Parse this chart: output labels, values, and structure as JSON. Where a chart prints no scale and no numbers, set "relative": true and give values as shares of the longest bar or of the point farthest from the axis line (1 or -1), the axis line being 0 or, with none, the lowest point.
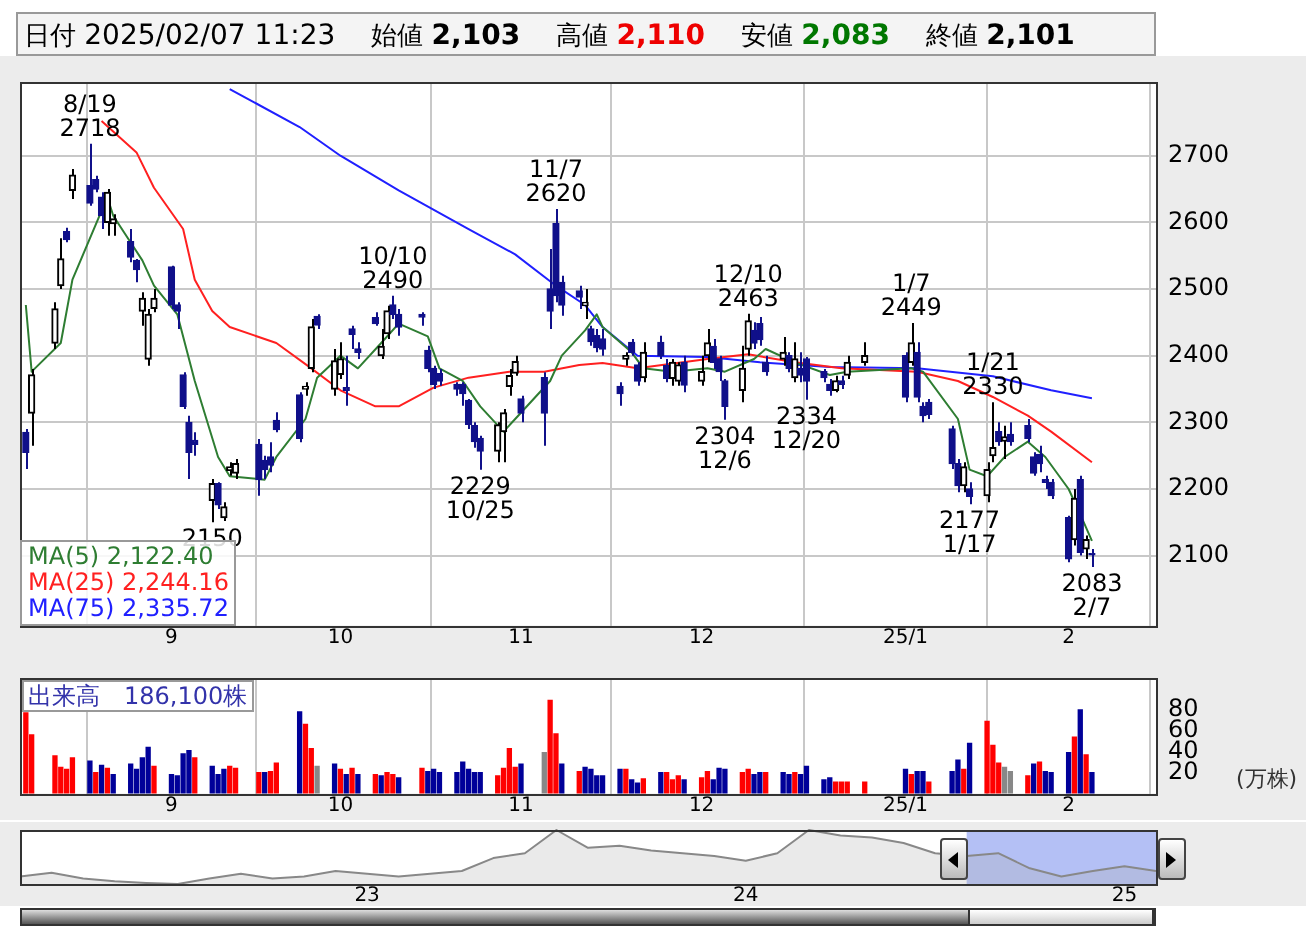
{
  "chart_data": [
    {
      "type": "candlestick",
      "grid": true,
      "legend": "bottom left",
      "colors": [
        "#10108a",
        "#000000",
        "#000000",
        "#000000",
        "#10108a",
        "#000000",
        "#10108a",
        "#10108a",
        "#10108a",
        "#000000",
        "#000000",
        "#10108a",
        "#10108a",
        "#000000",
        "#000000",
        "#000000",
        "#10108a",
        "#10108a",
        "#10108a",
        "#10108a",
        "#10108a",
        "#000000",
        "#10108a",
        "#000000",
        "#000000",
        "#000000",
        "#10108a",
        "#10108a",
        "#10108a",
        "#10108a",
        "#10108a",
        "#000000",
        "#000000",
        "#10108a",
        "#000000",
        "#000000",
        "#10108a",
        "#10108a",
        "#10108a",
        "#10108a",
        "#000000",
        "#000000",
        "#10108a",
        "#10108a",
        "#10108a",
        "#10108a",
        "#10108a",
        "#10108a",
        "#10108a",
        "#10108a",
        "#10108a",
        "#10108a",
        "#10108a",
        "#000000",
        "#000000",
        "#000000",
        "#000000",
        "#10108a",
        "#10108a",
        "#10108a",
        "#10108a",
        "#10108a",
        "#10108a",
        "#000000",
        "#10108a",
        "#10108a",
        "#10108a",
        "#10108a",
        "#000000",
        "#10108a",
        "#10108a",
        "#000000",
        "#10108a",
        "#10108a",
        "#000000",
        "#000000",
        "#10108a",
        "#000000",
        "#000000",
        "#10108a",
        "#10108a",
        "#10108a",
        "#000000",
        "#000000",
        "#10108a",
        "#10108a",
        "#10108a",
        "#000000",
        "#10108a",
        "#000000",
        "#10108a",
        "#10108a",
        "#10108a",
        "#10108a",
        "#000000",
        "#10108a",
        "#000000",
        "#000000",
        "#10108a",
        "#000000",
        "#10108a",
        "#10108a",
        "#10108a",
        "#10108a",
        "#10108a",
        "#000000",
        "#10108a",
        "#000000",
        "#000000",
        "#10108a",
        "#000000",
        "#10108a",
        "#10108a",
        "#10108a",
        "#10108a",
        "#10108a",
        "#10108a",
        "#10108a",
        "#000000",
        "#10108a",
        "#000000",
        "#10108a"
      ],
      "x": [
        "2024-08-08",
        "2024-08-09",
        "2024-08-13",
        "2024-08-14",
        "2024-08-15",
        "2024-08-16",
        "2024-08-19",
        "2024-08-20",
        "2024-08-21",
        "2024-08-22",
        "2024-08-23",
        "2024-08-26",
        "2024-08-27",
        "2024-08-28",
        "2024-08-29",
        "2024-08-30",
        "2024-09-02",
        "2024-09-03",
        "2024-09-04",
        "2024-09-05",
        "2024-09-06",
        "2024-09-09",
        "2024-09-10",
        "2024-09-11",
        "2024-09-12",
        "2024-09-13",
        "2024-09-17",
        "2024-09-18",
        "2024-09-19",
        "2024-09-20",
        "2024-09-24",
        "2024-09-25",
        "2024-09-26",
        "2024-09-27",
        "2024-09-30",
        "2024-10-01",
        "2024-10-02",
        "2024-10-03",
        "2024-10-04",
        "2024-10-07",
        "2024-10-08",
        "2024-10-09",
        "2024-10-10",
        "2024-10-11",
        "2024-10-15",
        "2024-10-16",
        "2024-10-17",
        "2024-10-18",
        "2024-10-21",
        "2024-10-22",
        "2024-10-23",
        "2024-10-24",
        "2024-10-25",
        "2024-10-28",
        "2024-10-29",
        "2024-10-30",
        "2024-10-31",
        "2024-11-01",
        "2024-11-05",
        "2024-11-06",
        "2024-11-07",
        "2024-11-08",
        "2024-11-11",
        "2024-11-12",
        "2024-11-13",
        "2024-11-14",
        "2024-11-15",
        "2024-11-18",
        "2024-11-19",
        "2024-11-20",
        "2024-11-21",
        "2024-11-22",
        "2024-11-25",
        "2024-11-26",
        "2024-11-27",
        "2024-11-28",
        "2024-11-29",
        "2024-12-02",
        "2024-12-03",
        "2024-12-04",
        "2024-12-05",
        "2024-12-06",
        "2024-12-09",
        "2024-12-10",
        "2024-12-11",
        "2024-12-12",
        "2024-12-13",
        "2024-12-16",
        "2024-12-17",
        "2024-12-18",
        "2024-12-19",
        "2024-12-20",
        "2024-12-23",
        "2024-12-24",
        "2024-12-25",
        "2024-12-26",
        "2024-12-27",
        "2024-12-30",
        "2025-01-06",
        "2025-01-07",
        "2025-01-08",
        "2025-01-09",
        "2025-01-10",
        "2025-01-14",
        "2025-01-15",
        "2025-01-16",
        "2025-01-17",
        "2025-01-20",
        "2025-01-21",
        "2025-01-22",
        "2025-01-23",
        "2025-01-24",
        "2025-01-27",
        "2025-01-28",
        "2025-01-29",
        "2025-01-30",
        "2025-01-31",
        "2025-02-03",
        "2025-02-04",
        "2025-02-05",
        "2025-02-06",
        "2025-02-07"
      ],
      "ohlc": [
        [
          2285,
          2290,
          2230,
          2255
        ],
        [
          2314,
          2380,
          2265,
          2371
        ],
        [
          2419,
          2480,
          2410,
          2470
        ],
        [
          2505,
          2576,
          2500,
          2545
        ],
        [
          2586,
          2592,
          2570,
          2574
        ],
        [
          2648,
          2680,
          2635,
          2671
        ],
        [
          2655,
          2718,
          2625,
          2629
        ],
        [
          2664,
          2670,
          2645,
          2650
        ],
        [
          2638,
          2645,
          2590,
          2610
        ],
        [
          2600,
          2650,
          2580,
          2645
        ],
        [
          2598,
          2612,
          2580,
          2605
        ],
        [
          2571,
          2590,
          2540,
          2548
        ],
        [
          2543,
          2545,
          2510,
          2529
        ],
        [
          2467,
          2495,
          2445,
          2486
        ],
        [
          2395,
          2470,
          2385,
          2462
        ],
        [
          2471,
          2500,
          2465,
          2486
        ],
        [
          2533,
          2535,
          2470,
          2476
        ],
        [
          2476,
          2480,
          2440,
          2467
        ],
        [
          2371,
          2375,
          2320,
          2324
        ],
        [
          2300,
          2310,
          2215,
          2255
        ],
        [
          2273,
          2285,
          2250,
          2267
        ],
        [
          2183,
          2215,
          2150,
          2208
        ],
        [
          2208,
          2210,
          2170,
          2176
        ],
        [
          2157,
          2180,
          2152,
          2173
        ],
        [
          2228,
          2240,
          2220,
          2233
        ],
        [
          2224,
          2245,
          2215,
          2238
        ],
        [
          2267,
          2275,
          2190,
          2214
        ],
        [
          2243,
          2250,
          2215,
          2229
        ],
        [
          2248,
          2270,
          2225,
          2236
        ],
        [
          2303,
          2315,
          2285,
          2289
        ],
        [
          2341,
          2345,
          2270,
          2276
        ],
        [
          2350,
          2360,
          2340,
          2354
        ],
        [
          2381,
          2455,
          2375,
          2443
        ],
        [
          2459,
          2462,
          2440,
          2446
        ],
        [
          2350,
          2410,
          2340,
          2392
        ],
        [
          2372,
          2420,
          2365,
          2395
        ],
        [
          2352,
          2400,
          2325,
          2348
        ],
        [
          2440,
          2445,
          2410,
          2432
        ],
        [
          2410,
          2420,
          2395,
          2405
        ],
        [
          2457,
          2465,
          2445,
          2448
        ],
        [
          2400,
          2440,
          2395,
          2414
        ],
        [
          2433,
          2475,
          2425,
          2467
        ],
        [
          2476,
          2490,
          2455,
          2462
        ],
        [
          2462,
          2470,
          2430,
          2443
        ],
        [
          2462,
          2465,
          2445,
          2458
        ],
        [
          2408,
          2415,
          2375,
          2381
        ],
        [
          2381,
          2385,
          2350,
          2357
        ],
        [
          2373,
          2380,
          2355,
          2362
        ],
        [
          2357,
          2360,
          2340,
          2350
        ],
        [
          2357,
          2360,
          2325,
          2343
        ],
        [
          2333,
          2335,
          2290,
          2297
        ],
        [
          2295,
          2300,
          2262,
          2271
        ],
        [
          2276,
          2280,
          2229,
          2257
        ],
        [
          2257,
          2300,
          2240,
          2296
        ],
        [
          2286,
          2320,
          2240,
          2314
        ],
        [
          2354,
          2380,
          2340,
          2370
        ],
        [
          2374,
          2400,
          2370,
          2391
        ],
        [
          2335,
          2340,
          2300,
          2314
        ],
        [
          2367,
          2375,
          2265,
          2314
        ],
        [
          2500,
          2560,
          2440,
          2467
        ],
        [
          2598,
          2620,
          2480,
          2490
        ],
        [
          2510,
          2520,
          2460,
          2476
        ],
        [
          2497,
          2505,
          2470,
          2488
        ],
        [
          2475,
          2500,
          2455,
          2480
        ],
        [
          2440,
          2445,
          2415,
          2421
        ],
        [
          2430,
          2440,
          2405,
          2412
        ],
        [
          2425,
          2440,
          2400,
          2410
        ],
        [
          2354,
          2360,
          2325,
          2343
        ],
        [
          2395,
          2405,
          2385,
          2400
        ],
        [
          2420,
          2425,
          2400,
          2405
        ],
        [
          2386,
          2390,
          2355,
          2362
        ],
        [
          2367,
          2420,
          2360,
          2405
        ],
        [
          2420,
          2430,
          2395,
          2400
        ],
        [
          2385,
          2395,
          2360,
          2366
        ],
        [
          2366,
          2395,
          2355,
          2390
        ],
        [
          2362,
          2390,
          2355,
          2386
        ],
        [
          2390,
          2400,
          2345,
          2356
        ],
        [
          2362,
          2400,
          2355,
          2376
        ],
        [
          2400,
          2440,
          2390,
          2419
        ],
        [
          2414,
          2425,
          2380,
          2390
        ],
        [
          2395,
          2400,
          2362,
          2376
        ],
        [
          2362,
          2365,
          2304,
          2324
        ],
        [
          2348,
          2415,
          2330,
          2381
        ],
        [
          2410,
          2463,
          2400,
          2452
        ],
        [
          2438,
          2450,
          2410,
          2419
        ],
        [
          2448,
          2458,
          2415,
          2424
        ],
        [
          2390,
          2400,
          2370,
          2376
        ],
        [
          2395,
          2428,
          2385,
          2405
        ],
        [
          2400,
          2405,
          2375,
          2381
        ],
        [
          2367,
          2420,
          2360,
          2395
        ],
        [
          2381,
          2405,
          2360,
          2371
        ],
        [
          2395,
          2398,
          2334,
          2362
        ],
        [
          2376,
          2380,
          2360,
          2367
        ],
        [
          2357,
          2365,
          2340,
          2348
        ],
        [
          2348,
          2370,
          2345,
          2362
        ],
        [
          2362,
          2370,
          2350,
          2357
        ],
        [
          2371,
          2400,
          2365,
          2390
        ],
        [
          2390,
          2420,
          2385,
          2400
        ],
        [
          2400,
          2405,
          2330,
          2338
        ],
        [
          2390,
          2449,
          2385,
          2419
        ],
        [
          2405,
          2420,
          2330,
          2338
        ],
        [
          2324,
          2330,
          2300,
          2310
        ],
        [
          2330,
          2335,
          2305,
          2312
        ],
        [
          2290,
          2295,
          2230,
          2238
        ],
        [
          2238,
          2245,
          2195,
          2205
        ],
        [
          2205,
          2240,
          2195,
          2233
        ],
        [
          2200,
          2210,
          2177,
          2189
        ],
        [
          2190,
          2240,
          2180,
          2229
        ],
        [
          2250,
          2330,
          2240,
          2262
        ],
        [
          2286,
          2300,
          2265,
          2271
        ],
        [
          2272,
          2295,
          2245,
          2278
        ],
        [
          2282,
          2300,
          2265,
          2271
        ],
        [
          2295,
          2305,
          2270,
          2276
        ],
        [
          2248,
          2255,
          2220,
          2224
        ],
        [
          2252,
          2265,
          2225,
          2238
        ],
        [
          2214,
          2220,
          2200,
          2210
        ],
        [
          2210,
          2215,
          2185,
          2190
        ],
        [
          2157,
          2160,
          2090,
          2095
        ],
        [
          2124,
          2200,
          2115,
          2186
        ],
        [
          2214,
          2220,
          2100,
          2105
        ],
        [
          2110,
          2130,
          2095,
          2124
        ],
        [
          2103,
          2110,
          2083,
          2101
        ]
      ],
      "xlim": [
        "2024-08-07",
        "2025-02-18"
      ],
      "xticks": [
        {
          "value": "2024-09-02",
          "label": "9"
        },
        {
          "value": "2024-10-01",
          "label": "10"
        },
        {
          "value": "2024-11-01",
          "label": "11"
        },
        {
          "value": "2024-12-02",
          "label": "12"
        },
        {
          "value": "2025-01-06",
          "label": "25/1"
        },
        {
          "value": "2025-02-03",
          "label": "2"
        }
      ],
      "ylim": [
        1995,
        2810
      ],
      "yticks": [
        2100,
        2200,
        2300,
        2400,
        2500,
        2600,
        2700
      ],
      "series": [
        {
          "type": "line",
          "name": "MA(5) 2,122.40",
          "color": "#2e7d32",
          "x": [
            "2024-08-08",
            "2024-08-09",
            "2024-08-14",
            "2024-08-16",
            "2024-08-22",
            "2024-08-23",
            "2024-08-28",
            "2024-08-30",
            "2024-09-03",
            "2024-09-06",
            "2024-09-10",
            "2024-09-12",
            "2024-09-18",
            "2024-09-20",
            "2024-09-25",
            "2024-09-27",
            "2024-10-01",
            "2024-10-04",
            "2024-10-08",
            "2024-10-11",
            "2024-10-16",
            "2024-10-18",
            "2024-10-22",
            "2024-10-25",
            "2024-10-29",
            "2024-10-31",
            "2024-11-06",
            "2024-11-08",
            "2024-11-12",
            "2024-11-14",
            "2024-11-15",
            "2024-11-20",
            "2024-11-22",
            "2024-11-27",
            "2024-12-03",
            "2024-12-06",
            "2024-12-11",
            "2024-12-13",
            "2024-12-18",
            "2024-12-24",
            "2024-12-27",
            "2025-01-07",
            "2025-01-09",
            "2025-01-15",
            "2025-01-17",
            "2025-01-20",
            "2025-01-23",
            "2025-01-27",
            "2025-01-30",
            "2025-02-03",
            "2025-02-05",
            "2025-02-07"
          ],
          "values": [
            2476,
            2376,
            2419,
            2514,
            2638,
            2610,
            2543,
            2505,
            2462,
            2362,
            2248,
            2219,
            2214,
            2248,
            2305,
            2367,
            2400,
            2381,
            2419,
            2448,
            2429,
            2381,
            2362,
            2324,
            2286,
            2305,
            2362,
            2400,
            2438,
            2462,
            2443,
            2405,
            2381,
            2376,
            2381,
            2376,
            2395,
            2410,
            2390,
            2371,
            2376,
            2381,
            2376,
            2305,
            2229,
            2219,
            2248,
            2271,
            2248,
            2200,
            2162,
            2122
          ]
        },
        {
          "type": "line",
          "name": "MA(25) 2,244.16",
          "color": "#ff2020",
          "x": [
            "2024-08-21",
            "2024-08-27",
            "2024-08-30",
            "2024-09-04",
            "2024-09-06",
            "2024-09-09",
            "2024-09-12",
            "2024-09-20",
            "2024-09-26",
            "2024-10-01",
            "2024-10-07",
            "2024-10-11",
            "2024-10-17",
            "2024-10-23",
            "2024-10-30",
            "2024-11-05",
            "2024-11-11",
            "2024-11-15",
            "2024-11-21",
            "2024-12-03",
            "2024-12-10",
            "2024-12-18",
            "2024-12-26",
            "2025-01-08",
            "2025-01-15",
            "2025-01-21",
            "2025-01-27",
            "2025-01-31",
            "2025-02-07"
          ],
          "values": [
            2752,
            2705,
            2652,
            2590,
            2514,
            2467,
            2443,
            2419,
            2381,
            2348,
            2324,
            2324,
            2352,
            2367,
            2376,
            2376,
            2386,
            2389,
            2381,
            2395,
            2402,
            2390,
            2381,
            2376,
            2362,
            2338,
            2310,
            2286,
            2240
          ]
        },
        {
          "type": "line",
          "name": "MA(75) 2,335.72",
          "color": "#2020ff",
          "x": [
            "2024-09-12",
            "2024-09-24",
            "2024-10-01",
            "2024-10-11",
            "2024-10-23",
            "2024-10-31",
            "2024-11-07",
            "2024-11-12",
            "2024-11-15",
            "2024-11-21",
            "2024-12-03",
            "2024-12-12",
            "2024-12-24",
            "2025-01-08",
            "2025-01-21",
            "2025-01-31",
            "2025-02-07"
          ],
          "values": [
            2800,
            2743,
            2700,
            2648,
            2590,
            2552,
            2505,
            2476,
            2443,
            2400,
            2398,
            2390,
            2383,
            2381,
            2369,
            2348,
            2336
          ]
        }
      ],
      "annotations": [
        "日付 2025/02/07 11:23",
        "始値 2,103",
        "高値 2,110",
        "安値 2,083",
        "終値 2,101",
        {
          "text": "8/19\n2718",
          "x": "2024-08-19",
          "y": 2718
        },
        {
          "text": "2150",
          "x": "2024-09-09",
          "y": 2150
        },
        {
          "text": "10/10\n2490",
          "x": "2024-10-10",
          "y": 2490
        },
        {
          "text": "2229\n10/25",
          "x": "2024-10-25",
          "y": 2229
        },
        {
          "text": "11/7\n2620",
          "x": "2024-11-07",
          "y": 2620
        },
        {
          "text": "2304\n12/6",
          "x": "2024-12-06",
          "y": 2304
        },
        {
          "text": "12/10\n2463",
          "x": "2024-12-10",
          "y": 2463
        },
        {
          "text": "2334\n12/20",
          "x": "2024-12-20",
          "y": 2334
        },
        {
          "text": "1/7\n2449",
          "x": "2025-01-07",
          "y": 2449
        },
        {
          "text": "2177\n1/17",
          "x": "2025-01-17",
          "y": 2177
        },
        {
          "text": "1/21\n2330",
          "x": "2025-01-21",
          "y": 2330
        },
        {
          "text": "2083\n2/7",
          "x": "2025-02-07",
          "y": 2083
        }
      ]
    },
    {
      "type": "bar",
      "title": "出来高　186,100株",
      "ylabel": "(万株)",
      "grid": "x",
      "x": [
        "2024-08-08",
        "2024-08-09",
        "2024-08-13",
        "2024-08-14",
        "2024-08-15",
        "2024-08-16",
        "2024-08-19",
        "2024-08-20",
        "2024-08-21",
        "2024-08-22",
        "2024-08-23",
        "2024-08-26",
        "2024-08-27",
        "2024-08-28",
        "2024-08-29",
        "2024-08-30",
        "2024-09-02",
        "2024-09-03",
        "2024-09-04",
        "2024-09-05",
        "2024-09-06",
        "2024-09-09",
        "2024-09-10",
        "2024-09-11",
        "2024-09-12",
        "2024-09-13",
        "2024-09-17",
        "2024-09-18",
        "2024-09-19",
        "2024-09-20",
        "2024-09-24",
        "2024-09-25",
        "2024-09-26",
        "2024-09-27",
        "2024-09-30",
        "2024-10-01",
        "2024-10-02",
        "2024-10-03",
        "2024-10-04",
        "2024-10-07",
        "2024-10-08",
        "2024-10-09",
        "2024-10-10",
        "2024-10-11",
        "2024-10-15",
        "2024-10-16",
        "2024-10-17",
        "2024-10-18",
        "2024-10-21",
        "2024-10-22",
        "2024-10-23",
        "2024-10-24",
        "2024-10-25",
        "2024-10-28",
        "2024-10-29",
        "2024-10-30",
        "2024-10-31",
        "2024-11-01",
        "2024-11-05",
        "2024-11-06",
        "2024-11-07",
        "2024-11-08",
        "2024-11-11",
        "2024-11-12",
        "2024-11-13",
        "2024-11-14",
        "2024-11-15",
        "2024-11-18",
        "2024-11-19",
        "2024-11-20",
        "2024-11-21",
        "2024-11-22",
        "2024-11-25",
        "2024-11-26",
        "2024-11-27",
        "2024-11-28",
        "2024-11-29",
        "2024-12-02",
        "2024-12-03",
        "2024-12-04",
        "2024-12-05",
        "2024-12-06",
        "2024-12-09",
        "2024-12-10",
        "2024-12-11",
        "2024-12-12",
        "2024-12-13",
        "2024-12-16",
        "2024-12-17",
        "2024-12-18",
        "2024-12-19",
        "2024-12-20",
        "2024-12-23",
        "2024-12-24",
        "2024-12-25",
        "2024-12-26",
        "2024-12-27",
        "2024-12-30",
        "2025-01-06",
        "2025-01-07",
        "2025-01-08",
        "2025-01-09",
        "2025-01-10",
        "2025-01-14",
        "2025-01-15",
        "2025-01-16",
        "2025-01-17",
        "2025-01-20",
        "2025-01-21",
        "2025-01-22",
        "2025-01-23",
        "2025-01-24",
        "2025-01-27",
        "2025-01-28",
        "2025-01-29",
        "2025-01-30",
        "2025-01-31",
        "2025-02-03",
        "2025-02-04",
        "2025-02-05",
        "2025-02-06",
        "2025-02-07"
      ],
      "values": [
        77,
        56,
        36,
        25,
        23,
        34,
        31,
        20,
        27,
        24,
        18,
        28,
        23,
        34,
        44,
        26,
        18,
        17,
        38,
        41,
        34,
        26,
        18,
        23,
        26,
        24,
        20,
        20,
        21,
        29,
        78,
        66,
        43,
        26,
        28,
        23,
        18,
        24,
        18,
        18,
        17,
        20,
        18,
        15,
        24,
        21,
        23,
        20,
        20,
        30,
        23,
        20,
        20,
        17,
        24,
        43,
        25,
        28,
        39,
        89,
        57,
        28,
        21,
        25,
        23,
        17,
        17,
        23,
        23,
        13,
        10,
        14,
        20,
        20,
        13,
        17,
        13,
        15,
        21,
        13,
        24,
        23,
        20,
        23,
        18,
        20,
        20,
        20,
        18,
        20,
        18,
        26,
        13,
        15,
        11,
        11,
        11,
        11,
        23,
        18,
        21,
        21,
        11,
        21,
        32,
        23,
        48,
        69,
        46,
        29,
        25,
        21,
        17,
        28,
        30,
        21,
        20,
        39,
        54,
        80,
        37,
        20
      ],
      "colors": [
        "#ff0000",
        "#ff0000",
        "#ff0000",
        "#ff0000",
        "#ff0000",
        "#ff0000",
        "#000099",
        "#ff0000",
        "#000099",
        "#ff0000",
        "#000099",
        "#000099",
        "#000099",
        "#000099",
        "#000099",
        "#ff0000",
        "#000099",
        "#000099",
        "#000099",
        "#000099",
        "#ff0000",
        "#000099",
        "#000099",
        "#000099",
        "#ff0000",
        "#ff0000",
        "#ff0000",
        "#000099",
        "#ff0000",
        "#ff0000",
        "#000099",
        "#ff0000",
        "#ff0000",
        "#888888",
        "#000099",
        "#ff0000",
        "#000099",
        "#ff0000",
        "#000099",
        "#ff0000",
        "#000099",
        "#ff0000",
        "#ff0000",
        "#000099",
        "#ff0000",
        "#000099",
        "#000099",
        "#000099",
        "#000099",
        "#000099",
        "#000099",
        "#000099",
        "#000099",
        "#ff0000",
        "#ff0000",
        "#ff0000",
        "#ff0000",
        "#000099",
        "#888888",
        "#ff0000",
        "#ff0000",
        "#000099",
        "#ff0000",
        "#000099",
        "#000099",
        "#000099",
        "#000099",
        "#000099",
        "#ff0000",
        "#000099",
        "#000099",
        "#ff0000",
        "#000099",
        "#ff0000",
        "#ff0000",
        "#ff0000",
        "#000099",
        "#ff0000",
        "#ff0000",
        "#000099",
        "#000099",
        "#000099",
        "#ff0000",
        "#ff0000",
        "#000099",
        "#000099",
        "#ff0000",
        "#000099",
        "#000099",
        "#ff0000",
        "#000099",
        "#000099",
        "#000099",
        "#000099",
        "#ff0000",
        "#ff0000",
        "#ff0000",
        "#ff0000",
        "#000099",
        "#ff0000",
        "#000099",
        "#000099",
        "#ff0000",
        "#000099",
        "#000099",
        "#ff0000",
        "#000099",
        "#ff0000",
        "#ff0000",
        "#ff0000",
        "#888888",
        "#888888",
        "#ff0000",
        "#000099",
        "#ff0000",
        "#000099",
        "#000099",
        "#000099",
        "#ff0000",
        "#000099",
        "#ff0000",
        "#000099"
      ],
      "xlim": [
        "2024-08-07",
        "2025-02-18"
      ],
      "xticks": [
        {
          "value": "2024-09-02",
          "label": "9"
        },
        {
          "value": "2024-10-01",
          "label": "10"
        },
        {
          "value": "2024-11-01",
          "label": "11"
        },
        {
          "value": "2024-12-02",
          "label": "12"
        },
        {
          "value": "2025-01-06",
          "label": "25/1"
        },
        {
          "value": "2025-02-03",
          "label": "2"
        }
      ],
      "ylim": [
        0,
        110
      ],
      "yticks": [
        20,
        40,
        60,
        80
      ]
    },
    {
      "type": "area",
      "relative": true,
      "color": "#888888",
      "x": [
        "2022-02",
        "2022-03",
        "2022-04",
        "2022-05",
        "2022-06",
        "2022-07",
        "2022-08",
        "2022-09",
        "2022-10",
        "2022-11",
        "2022-12",
        "2023-01",
        "2023-02",
        "2023-03",
        "2023-04",
        "2023-05",
        "2023-06",
        "2023-07",
        "2023-08",
        "2023-09",
        "2023-10",
        "2023-11",
        "2023-12",
        "2024-01",
        "2024-02",
        "2024-03",
        "2024-04",
        "2024-05",
        "2024-06",
        "2024-07",
        "2024-08",
        "2024-09",
        "2024-10",
        "2024-11",
        "2024-12",
        "2025-01",
        "2025-02"
      ],
      "values": [
        0.14,
        0.21,
        0.1,
        0.05,
        0.02,
        0,
        0.1,
        0.19,
        0.1,
        0.14,
        0.24,
        0.19,
        0.14,
        0.19,
        0.24,
        0.48,
        0.57,
        1,
        0.67,
        0.71,
        0.62,
        0.57,
        0.52,
        0.43,
        0.57,
        1,
        0.9,
        0.86,
        0.76,
        0.57,
        0.52,
        0.57,
        0.29,
        0.14,
        0.24,
        0.33,
        0.24
      ],
      "xlim": [
        "2022-02",
        "2025-02"
      ],
      "xticks": [
        {
          "value": "2023-01",
          "label": "23"
        },
        {
          "value": "2024-01",
          "label": "24"
        },
        {
          "value": "2025-01",
          "label": "25"
        }
      ],
      "bands": [
        {
          "axis": "x",
          "from": "2024-08",
          "to": "2025-02",
          "color": "#b4c0f5"
        }
      ]
    }
  ]
}
